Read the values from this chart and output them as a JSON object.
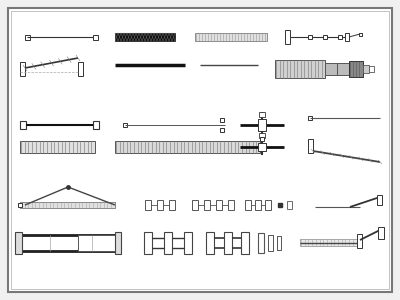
{
  "figsize": [
    4.0,
    3.0
  ],
  "dpi": 100,
  "bg": "#f0f0f0",
  "white": "#ffffff",
  "black": "#111111",
  "dark": "#222222",
  "mid": "#555555",
  "gray": "#888888",
  "lgray": "#cccccc",
  "border_lw": 1.2,
  "border_color": "#777777"
}
